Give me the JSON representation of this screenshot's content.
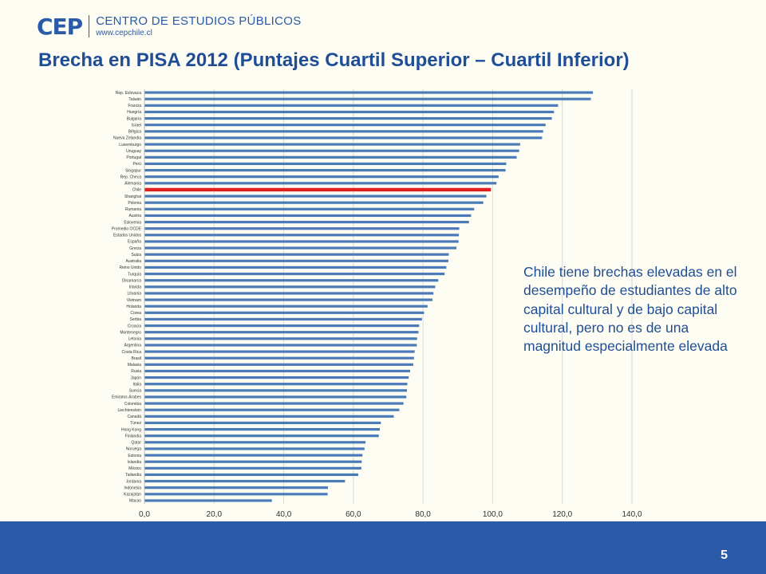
{
  "header": {
    "logo_mark": "CEP",
    "logo_name": "CENTRO DE ESTUDIOS PÚBLICOS",
    "logo_url": "www.cepchile.cl"
  },
  "title": "Brecha en PISA 2012 (Puntajes Cuartil Superior – Cuartil Inferior)",
  "note": "Chile tiene brechas elevadas en el desempeño de estudiantes de alto capital cultural y de bajo capital cultural, pero no es de una magnitud especialmente elevada",
  "page_number": "5",
  "colors": {
    "bar": "#4a7ab8",
    "highlight": "#e02020",
    "text": "#1f4e96",
    "footer": "#2b5aa8"
  },
  "chart_data": {
    "type": "bar",
    "orientation": "horizontal",
    "title": "",
    "xlabel": "",
    "ylabel": "",
    "xlim": [
      0,
      140
    ],
    "x_ticks": [
      "0,0",
      "20,0",
      "40,0",
      "60,0",
      "80,0",
      "100,0",
      "120,0",
      "140,0"
    ],
    "grid": true,
    "highlight": "Chile",
    "categories": [
      "Rep. Eslovaca",
      "Taiwán",
      "Francia",
      "Hungría",
      "Bulgaria",
      "Israel",
      "Bélgica",
      "Nueva Zelandia",
      "Luxemburgo",
      "Uruguay",
      "Portugal",
      "Perú",
      "Singapur",
      "Rep. Checa",
      "Alemania",
      "Chile",
      "Shanghai",
      "Polonia",
      "Rumania",
      "Austria",
      "Eslovenia",
      "Promedio OCDE",
      "Estados Unidos",
      "España",
      "Grecia",
      "Suiza",
      "Australia",
      "Reino Unido",
      "Turquía",
      "Dinamarca",
      "Irlanda",
      "Lituania",
      "Vietnam",
      "Holanda",
      "Corea",
      "Serbia",
      "Croacia",
      "Montenegro",
      "Letonia",
      "Argentina",
      "Costa Rica",
      "Brasil",
      "Malasia",
      "Rusia",
      "Japón",
      "Italia",
      "Suecia",
      "Emiratos Árabes",
      "Colombia",
      "Liechtenstein",
      "Canadá",
      "Túnez",
      "Hong Kong",
      "Finlandia",
      "Qatar",
      "Noruega",
      "Estonia",
      "Islandia",
      "México",
      "Tailandia",
      "Jordania",
      "Indonesia",
      "Kazajstán",
      "Macao"
    ],
    "values": [
      128.8,
      128.2,
      118.8,
      117.6,
      117.0,
      115.2,
      114.5,
      114.2,
      107.9,
      107.6,
      106.9,
      103.9,
      103.7,
      101.7,
      101.1,
      99.5,
      98.2,
      97.3,
      94.7,
      93.8,
      93.2,
      90.4,
      90.3,
      90.2,
      89.6,
      87.4,
      87.3,
      86.7,
      86.2,
      84.4,
      83.5,
      83.0,
      82.7,
      81.3,
      80.3,
      79.7,
      78.9,
      78.7,
      78.3,
      78.2,
      77.6,
      77.4,
      77.2,
      76.3,
      75.9,
      75.5,
      75.4,
      75.2,
      74.4,
      73.2,
      71.6,
      67.9,
      67.6,
      67.3,
      63.5,
      63.2,
      62.6,
      62.4,
      62.3,
      61.4,
      57.6,
      52.7,
      52.6,
      36.6
    ]
  }
}
